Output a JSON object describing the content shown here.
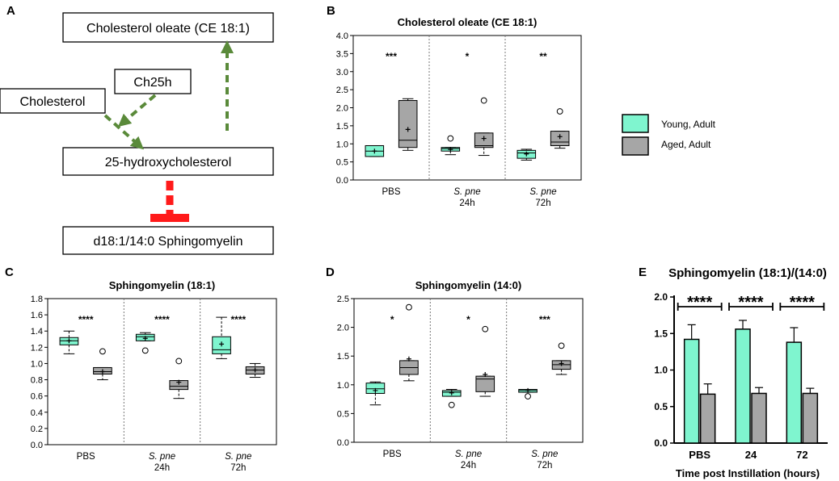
{
  "panels": {
    "A": "A",
    "B": "B",
    "C": "C",
    "D": "D",
    "E": "E"
  },
  "diagram": {
    "cholesterol_oleate": "Cholesterol oleate (CE 18:1)",
    "ch25h": "Ch25h",
    "cholesterol": "Cholesterol",
    "hydroxy": "25-hydroxycholesterol",
    "sphingomyelin": "d18:1/14:0 Sphingomyelin"
  },
  "legend": {
    "young": "Young, Adult",
    "aged": "Aged, Adult",
    "young_color": "#7ff5cf",
    "aged_color": "#a6a6a6"
  },
  "colors": {
    "young": "#7ff5cf",
    "aged": "#a6a6a6",
    "arrow_green": "#5a8a3a",
    "inhibit_red": "#ff1a1a"
  },
  "chart_data": [
    {
      "panel": "B",
      "type": "box",
      "title": "Cholesterol oleate (CE 18:1)",
      "ylim": [
        0,
        4.0
      ],
      "yticks": [
        "0.0",
        "0.5",
        "1.0",
        "1.5",
        "2.0",
        "2.5",
        "3.0",
        "3.5",
        "4.0"
      ],
      "groups": [
        {
          "label": "PBS",
          "sublabel": "",
          "italic": false,
          "sig": "***",
          "young": {
            "min": 0.65,
            "q1": 0.65,
            "median": 0.8,
            "q3": 0.95,
            "max": 0.95,
            "mean": 0.8,
            "outliers": []
          },
          "aged": {
            "min": 0.82,
            "q1": 0.9,
            "median": 1.1,
            "q3": 2.2,
            "max": 2.25,
            "mean": 1.4,
            "outliers": []
          }
        },
        {
          "label": "S. pne",
          "sublabel": "24h",
          "italic": true,
          "sig": "*",
          "young": {
            "min": 0.7,
            "q1": 0.8,
            "median": 0.87,
            "q3": 0.9,
            "max": 0.9,
            "mean": 0.85,
            "outliers": [
              1.15
            ]
          },
          "aged": {
            "min": 0.68,
            "q1": 0.9,
            "median": 0.95,
            "q3": 1.3,
            "max": 1.3,
            "mean": 1.15,
            "outliers": [
              2.2
            ]
          }
        },
        {
          "label": "S. pne",
          "sublabel": "72h",
          "italic": true,
          "sig": "**",
          "young": {
            "min": 0.55,
            "q1": 0.6,
            "median": 0.75,
            "q3": 0.82,
            "max": 0.85,
            "mean": 0.72,
            "outliers": []
          },
          "aged": {
            "min": 0.88,
            "q1": 0.95,
            "median": 1.05,
            "q3": 1.35,
            "max": 1.35,
            "mean": 1.2,
            "outliers": [
              1.9
            ]
          }
        }
      ]
    },
    {
      "panel": "C",
      "type": "box",
      "title": "Sphingomyelin (18:1)",
      "ylim": [
        0,
        1.8
      ],
      "yticks": [
        "0.0",
        "0.2",
        "0.4",
        "0.6",
        "0.8",
        "1.0",
        "1.2",
        "1.4",
        "1.6",
        "1.8"
      ],
      "groups": [
        {
          "label": "PBS",
          "sublabel": "",
          "italic": false,
          "sig": "****",
          "young": {
            "min": 1.12,
            "q1": 1.23,
            "median": 1.28,
            "q3": 1.32,
            "max": 1.4,
            "mean": 1.28,
            "outliers": []
          },
          "aged": {
            "min": 0.8,
            "q1": 0.87,
            "median": 0.9,
            "q3": 0.95,
            "max": 0.95,
            "mean": 0.9,
            "outliers": [
              1.15
            ]
          }
        },
        {
          "label": "S. pne",
          "sublabel": "24h",
          "italic": true,
          "sig": "****",
          "young": {
            "min": 1.28,
            "q1": 1.28,
            "median": 1.33,
            "q3": 1.36,
            "max": 1.38,
            "mean": 1.31,
            "outliers": [
              1.16
            ]
          },
          "aged": {
            "min": 0.57,
            "q1": 0.68,
            "median": 0.72,
            "q3": 0.79,
            "max": 0.79,
            "mean": 0.77,
            "outliers": [
              1.03
            ]
          }
        },
        {
          "label": "S. pne",
          "sublabel": "72h",
          "italic": true,
          "sig": "****",
          "young": {
            "min": 1.06,
            "q1": 1.12,
            "median": 1.17,
            "q3": 1.33,
            "max": 1.57,
            "mean": 1.24,
            "outliers": []
          },
          "aged": {
            "min": 0.83,
            "q1": 0.87,
            "median": 0.92,
            "q3": 0.96,
            "max": 1.0,
            "mean": 0.92,
            "outliers": []
          }
        }
      ]
    },
    {
      "panel": "D",
      "type": "box",
      "title": "Sphingomyelin (14:0)",
      "ylim": [
        0,
        2.5
      ],
      "yticks": [
        "0.0",
        "0.5",
        "1.0",
        "1.5",
        "2.0",
        "2.5"
      ],
      "groups": [
        {
          "label": "PBS",
          "sublabel": "",
          "italic": false,
          "sig": "*",
          "young": {
            "min": 0.65,
            "q1": 0.85,
            "median": 0.93,
            "q3": 1.03,
            "max": 1.05,
            "mean": 0.9,
            "outliers": []
          },
          "aged": {
            "min": 1.07,
            "q1": 1.18,
            "median": 1.3,
            "q3": 1.42,
            "max": 1.42,
            "mean": 1.45,
            "outliers": [
              2.35
            ]
          }
        },
        {
          "label": "S. pne",
          "sublabel": "24h",
          "italic": true,
          "sig": "*",
          "young": {
            "min": 0.8,
            "q1": 0.8,
            "median": 0.87,
            "q3": 0.9,
            "max": 0.92,
            "mean": 0.86,
            "outliers": [
              0.65
            ]
          },
          "aged": {
            "min": 0.8,
            "q1": 0.88,
            "median": 1.1,
            "q3": 1.15,
            "max": 1.15,
            "mean": 1.18,
            "outliers": [
              1.97
            ]
          }
        },
        {
          "label": "S. pne",
          "sublabel": "72h",
          "italic": true,
          "sig": "***",
          "young": {
            "min": 0.87,
            "q1": 0.87,
            "median": 0.9,
            "q3": 0.92,
            "max": 0.92,
            "mean": 0.9,
            "outliers": [
              0.8
            ]
          },
          "aged": {
            "min": 1.18,
            "q1": 1.27,
            "median": 1.35,
            "q3": 1.42,
            "max": 1.42,
            "mean": 1.37,
            "outliers": [
              1.68
            ]
          }
        }
      ]
    },
    {
      "panel": "E",
      "type": "bar",
      "title": "Sphingomyelin (18:1)/(14:0)",
      "xlabel": "Time post Instillation (hours)",
      "ylim": [
        0,
        2.0
      ],
      "yticks": [
        "0.0",
        "0.5",
        "1.0",
        "1.5",
        "2.0"
      ],
      "categories": [
        "PBS",
        "24",
        "72"
      ],
      "series": [
        {
          "name": "Young, Adult",
          "values": [
            1.42,
            1.56,
            1.38
          ],
          "errors": [
            0.2,
            0.12,
            0.2
          ]
        },
        {
          "name": "Aged, Adult",
          "values": [
            0.67,
            0.68,
            0.68
          ],
          "errors": [
            0.14,
            0.08,
            0.07
          ]
        }
      ],
      "sig": [
        "****",
        "****",
        "****"
      ]
    }
  ]
}
